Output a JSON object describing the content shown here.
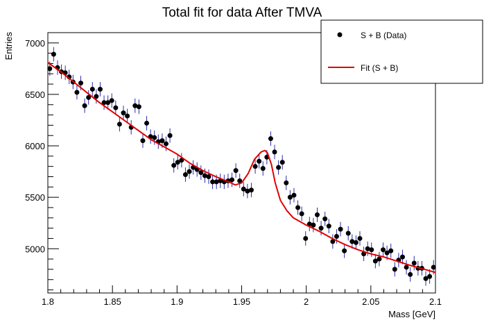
{
  "chart_data": {
    "type": "scatter",
    "title": "Total fit for data After TMVA",
    "xlabel": "Mass [GeV]",
    "ylabel": "Entries",
    "xlim": [
      1.8,
      2.1
    ],
    "ylim": [
      4570,
      7100
    ],
    "xticks": [
      1.8,
      1.85,
      1.9,
      1.95,
      2.0,
      2.05,
      2.1
    ],
    "xtick_labels": [
      "1.8",
      "1.85",
      "1.9",
      "1.95",
      "2",
      "2.05",
      "2.1"
    ],
    "yticks": [
      5000,
      5500,
      6000,
      6500,
      7000
    ],
    "ytick_labels": [
      "5000",
      "5500",
      "6000",
      "6500",
      "7000"
    ],
    "legend": {
      "position": "top-right",
      "entries": [
        {
          "label": "S + B (Data)",
          "marker": "point",
          "color": "#000000"
        },
        {
          "label": "Fit (S + B)",
          "marker": "line",
          "color": "#e00000"
        }
      ]
    },
    "series": [
      {
        "name": "S + B (Data)",
        "style": "points-with-errorbars",
        "color": "#000000",
        "x": [
          1.8015,
          1.8045,
          1.8075,
          1.8105,
          1.8135,
          1.8165,
          1.8195,
          1.8225,
          1.8255,
          1.8285,
          1.8315,
          1.8345,
          1.8375,
          1.8405,
          1.8435,
          1.8465,
          1.8495,
          1.8525,
          1.8555,
          1.8585,
          1.8615,
          1.8645,
          1.8675,
          1.8705,
          1.8735,
          1.8765,
          1.8795,
          1.8825,
          1.8855,
          1.8885,
          1.8915,
          1.8945,
          1.8975,
          1.9005,
          1.9035,
          1.9065,
          1.9095,
          1.9125,
          1.9155,
          1.9185,
          1.9215,
          1.9245,
          1.9275,
          1.9305,
          1.9335,
          1.9365,
          1.9395,
          1.9425,
          1.9455,
          1.9485,
          1.9515,
          1.9545,
          1.9575,
          1.9605,
          1.9635,
          1.9665,
          1.9695,
          1.9725,
          1.9755,
          1.9785,
          1.9815,
          1.9845,
          1.9875,
          1.9905,
          1.9935,
          1.9965,
          1.9995,
          2.0025,
          2.0055,
          2.0085,
          2.0115,
          2.0145,
          2.0175,
          2.0205,
          2.0235,
          2.0265,
          2.0295,
          2.0325,
          2.0355,
          2.0385,
          2.0415,
          2.0445,
          2.0475,
          2.0505,
          2.0535,
          2.0565,
          2.0595,
          2.0625,
          2.0655,
          2.0685,
          2.0715,
          2.0745,
          2.0775,
          2.0805,
          2.0835,
          2.0865,
          2.0895,
          2.0925,
          2.0955,
          2.0985
        ],
        "y": [
          6750,
          6890,
          6760,
          6720,
          6710,
          6670,
          6620,
          6520,
          6610,
          6390,
          6470,
          6550,
          6480,
          6550,
          6420,
          6420,
          6440,
          6370,
          6210,
          6320,
          6290,
          6180,
          6390,
          6380,
          6050,
          6220,
          6090,
          6080,
          6040,
          6050,
          6020,
          6100,
          5810,
          5840,
          5860,
          5720,
          5750,
          5790,
          5770,
          5740,
          5710,
          5700,
          5650,
          5650,
          5660,
          5650,
          5660,
          5670,
          5760,
          5660,
          5580,
          5560,
          5570,
          5800,
          5850,
          5780,
          5890,
          6070,
          5940,
          5790,
          5840,
          5640,
          5500,
          5520,
          5400,
          5340,
          5100,
          5240,
          5230,
          5330,
          5200,
          5290,
          5220,
          5070,
          5120,
          5190,
          4980,
          5150,
          5070,
          5060,
          5100,
          4950,
          5000,
          4990,
          4880,
          4900,
          4990,
          4960,
          4980,
          4800,
          4890,
          4920,
          4820,
          4750,
          4860,
          4810,
          4810,
          4710,
          4730,
          4820
        ],
        "error": [
          70,
          70,
          70,
          70,
          70,
          70,
          70,
          70,
          70,
          70,
          70,
          70,
          70,
          70,
          70,
          70,
          70,
          70,
          70,
          70,
          70,
          70,
          70,
          70,
          70,
          70,
          70,
          70,
          70,
          70,
          70,
          70,
          70,
          70,
          70,
          70,
          70,
          70,
          70,
          70,
          70,
          70,
          70,
          70,
          70,
          70,
          70,
          70,
          70,
          70,
          70,
          70,
          70,
          70,
          70,
          70,
          70,
          70,
          70,
          70,
          70,
          70,
          70,
          70,
          70,
          70,
          70,
          70,
          70,
          70,
          70,
          70,
          70,
          70,
          70,
          70,
          70,
          70,
          70,
          70,
          70,
          70,
          70,
          70,
          70,
          70,
          70,
          70,
          70,
          70,
          70,
          70,
          70,
          70,
          70,
          70,
          70,
          70,
          70,
          70
        ]
      },
      {
        "name": "Fit (S + B)",
        "style": "line",
        "color": "#e00000",
        "x": [
          1.8,
          1.81,
          1.82,
          1.83,
          1.84,
          1.85,
          1.86,
          1.87,
          1.88,
          1.89,
          1.9,
          1.91,
          1.92,
          1.93,
          1.94,
          1.945,
          1.95,
          1.955,
          1.96,
          1.965,
          1.968,
          1.97,
          1.973,
          1.976,
          1.98,
          1.985,
          1.99,
          2.0,
          2.01,
          2.02,
          2.03,
          2.04,
          2.05,
          2.06,
          2.07,
          2.08,
          2.09,
          2.1
        ],
        "y": [
          6810,
          6720,
          6620,
          6520,
          6420,
          6330,
          6240,
          6150,
          6060,
          5990,
          5920,
          5830,
          5760,
          5700,
          5650,
          5620,
          5640,
          5730,
          5870,
          5940,
          5955,
          5930,
          5820,
          5640,
          5470,
          5370,
          5300,
          5230,
          5170,
          5100,
          5040,
          4990,
          4950,
          4920,
          4880,
          4840,
          4805,
          4770
        ]
      }
    ]
  }
}
